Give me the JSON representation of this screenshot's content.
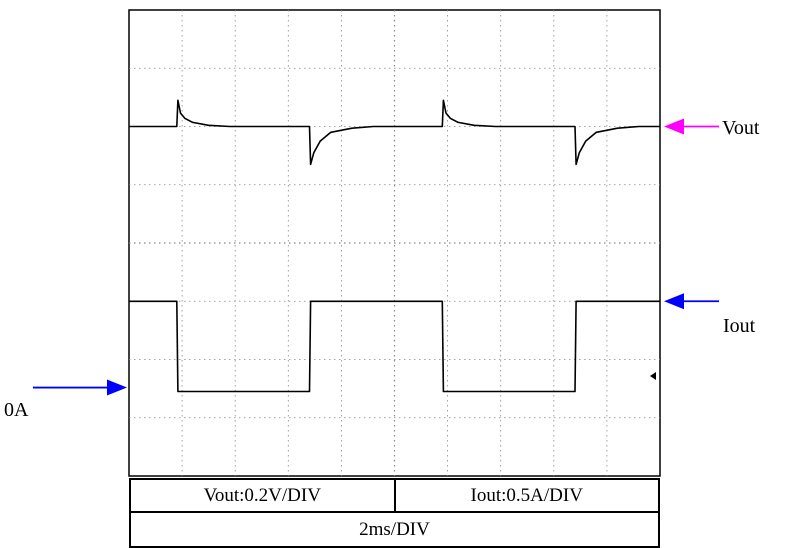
{
  "chart_data": {
    "type": "line",
    "title": "",
    "grid": true,
    "grid_divisions": {
      "x": 10,
      "y": 8
    },
    "x_units": "div",
    "y_units": "div",
    "xlim": [
      0,
      10
    ],
    "ylim": [
      -4,
      4
    ],
    "series": [
      {
        "name": "Vout",
        "color": "#000000",
        "points": [
          [
            0,
            2.0
          ],
          [
            0.45,
            2.0
          ],
          [
            0.9,
            2.0
          ],
          [
            0.92,
            2.45
          ],
          [
            0.97,
            2.23
          ],
          [
            1.05,
            2.14
          ],
          [
            1.2,
            2.07
          ],
          [
            1.5,
            2.02
          ],
          [
            1.9,
            2.0
          ],
          [
            2.4,
            2.0
          ],
          [
            3.4,
            2.0
          ],
          [
            3.42,
            1.35
          ],
          [
            3.48,
            1.55
          ],
          [
            3.6,
            1.75
          ],
          [
            3.8,
            1.9
          ],
          [
            4.2,
            1.97
          ],
          [
            4.6,
            2.0
          ],
          [
            5.4,
            2.0
          ],
          [
            5.9,
            2.0
          ],
          [
            5.92,
            2.45
          ],
          [
            5.97,
            2.23
          ],
          [
            6.05,
            2.14
          ],
          [
            6.2,
            2.07
          ],
          [
            6.5,
            2.02
          ],
          [
            6.9,
            2.0
          ],
          [
            7.4,
            2.0
          ],
          [
            8.4,
            2.0
          ],
          [
            8.42,
            1.35
          ],
          [
            8.48,
            1.55
          ],
          [
            8.6,
            1.75
          ],
          [
            8.8,
            1.9
          ],
          [
            9.2,
            1.97
          ],
          [
            9.6,
            2.0
          ],
          [
            10,
            2.0
          ]
        ]
      },
      {
        "name": "Iout",
        "color": "#000000",
        "points": [
          [
            0,
            -1.0
          ],
          [
            0.9,
            -1.0
          ],
          [
            0.92,
            -2.55
          ],
          [
            3.4,
            -2.55
          ],
          [
            3.42,
            -1.0
          ],
          [
            5.9,
            -1.0
          ],
          [
            5.92,
            -2.55
          ],
          [
            8.4,
            -2.55
          ],
          [
            8.42,
            -1.0
          ],
          [
            10,
            -1.0
          ]
        ]
      }
    ],
    "markers": [
      {
        "label": "Vout",
        "level": 2.0,
        "side": "right",
        "arrow_color": "#ff00ff"
      },
      {
        "label": "Iout",
        "level": -1.0,
        "side": "right",
        "arrow_color": "#0000ff"
      },
      {
        "label": "0A",
        "level": -2.55,
        "side": "left",
        "arrow_color": "#0000ff"
      }
    ],
    "scales": {
      "vout": "Vout:0.2V/DIV",
      "iout": "Iout:0.5A/DIV",
      "time": "2ms/DIV"
    }
  }
}
